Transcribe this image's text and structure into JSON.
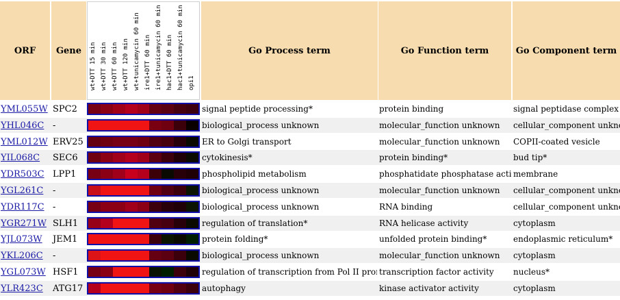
{
  "headers": {
    "orf": "ORF",
    "gene": "Gene",
    "process": "Go Process term",
    "function": "Go Function term",
    "component": "Go Component term"
  },
  "conditions": [
    "wt+DTT 15 min",
    "wt+DTT 30 min",
    "wt+DTT 60 min",
    "wt+DTT 120 min",
    "wt+tunicamycin 60 min",
    "ire1+DTT 60 min",
    "ire1+tunicamycin 60 min",
    "hac1+DTT 60 min",
    "hac1+tunicamycin 60 min",
    "opi1"
  ],
  "rows": [
    {
      "orf": "YML055W",
      "gene": "SPC2",
      "process": "signal peptide processing*",
      "function": "protein binding",
      "component": "signal peptidase complex",
      "heat": [
        "#780014",
        "#8c0016",
        "#a00018",
        "#b4001c",
        "#a00018",
        "#640012",
        "#5a0012",
        "#460010",
        "#3c000e",
        "#007814"
      ]
    },
    {
      "orf": "YHL046C",
      "gene": "-",
      "process": "biological_process unknown",
      "function": "molecular_function unknown",
      "component": "cellular_component unknown",
      "heat": [
        "#f01414",
        "#f01414",
        "#f01414",
        "#f01414",
        "#f01414",
        "#780010",
        "#6e0010",
        "#3c000a",
        "#0a0000",
        "#006e14"
      ]
    },
    {
      "orf": "YML012W",
      "gene": "ERV25",
      "process": "ER to Golgi transport",
      "function": "molecular_function unknown",
      "component": "COPII-coated vesicle",
      "heat": [
        "#640012",
        "#6e0012",
        "#780014",
        "#780014",
        "#6e0012",
        "#500010",
        "#46000e",
        "#28000a",
        "#0a0a00",
        "#006414"
      ]
    },
    {
      "orf": "YIL068C",
      "gene": "SEC6",
      "process": "cytokinesis*",
      "function": "protein binding*",
      "component": "bud tip*",
      "heat": [
        "#6e0012",
        "#8c0016",
        "#a0001a",
        "#b4001c",
        "#a0001a",
        "#5a0010",
        "#3c000c",
        "#1e0006",
        "#0a0a00",
        "#007814"
      ]
    },
    {
      "orf": "YDR503C",
      "gene": "LPP1",
      "process": "phospholipid metabolism",
      "function": "phosphatidate phosphatase activity",
      "component": "membrane",
      "heat": [
        "#780014",
        "#8c0016",
        "#a0001a",
        "#c8001e",
        "#b4001c",
        "#3c0008",
        "#0a0a02",
        "#28000a",
        "#1e0006",
        "#007814"
      ]
    },
    {
      "orf": "YGL261C",
      "gene": "-",
      "process": "biological_process unknown",
      "function": "molecular_function unknown",
      "component": "cellular_component unknown",
      "heat": [
        "#c8101a",
        "#f01414",
        "#f01414",
        "#f01414",
        "#f01414",
        "#6e0012",
        "#500010",
        "#3c000c",
        "#0a1400",
        "#008214"
      ]
    },
    {
      "orf": "YDR117C",
      "gene": "-",
      "process": "biological_process unknown",
      "function": "RNA binding",
      "component": "cellular_component unknown",
      "heat": [
        "#780014",
        "#8c0016",
        "#8c0016",
        "#a0001a",
        "#8c0016",
        "#3c000c",
        "#28000a",
        "#1e0006",
        "#0a1400",
        "#007814"
      ]
    },
    {
      "orf": "YGR271W",
      "gene": "SLH1",
      "process": "regulation of translation*",
      "function": "RNA helicase activity",
      "component": "cytoplasm",
      "heat": [
        "#960018",
        "#b4001c",
        "#f01414",
        "#f01414",
        "#f01414",
        "#500010",
        "#460010",
        "#28000a",
        "#0a0a00",
        "#007814"
      ]
    },
    {
      "orf": "YJL073W",
      "gene": "JEM1",
      "process": "protein folding*",
      "function": "unfolded protein binding*",
      "component": "endoplasmic reticulum*",
      "heat": [
        "#f01414",
        "#f01414",
        "#f01414",
        "#f01414",
        "#f01414",
        "#3c000c",
        "#0a1400",
        "#0a0a00",
        "#001e00",
        "#1ee61e"
      ]
    },
    {
      "orf": "YKL206C",
      "gene": "-",
      "process": "biological_process unknown",
      "function": "molecular_function unknown",
      "component": "cytoplasm",
      "heat": [
        "#dc1418",
        "#f01414",
        "#f01414",
        "#f01414",
        "#f01414",
        "#640012",
        "#5a0010",
        "#3c000c",
        "#0a0a00",
        "#006e14"
      ]
    },
    {
      "orf": "YGL073W",
      "gene": "HSF1",
      "process": "regulation of transcription from Pol II promoter*",
      "function": "transcription factor activity",
      "component": "nucleus*",
      "heat": [
        "#780014",
        "#8c0016",
        "#f01414",
        "#f01414",
        "#f01414",
        "#0a1400",
        "#001e00",
        "#3c000c",
        "#1e0006",
        "#008214"
      ]
    },
    {
      "orf": "YLR423C",
      "gene": "ATG17",
      "process": "autophagy",
      "function": "kinase activator activity",
      "component": "cytoplasm",
      "heat": [
        "#b4001c",
        "#f01414",
        "#f01414",
        "#f01414",
        "#f01414",
        "#780014",
        "#6e0012",
        "#500010",
        "#3c000c",
        "#007814"
      ]
    }
  ]
}
